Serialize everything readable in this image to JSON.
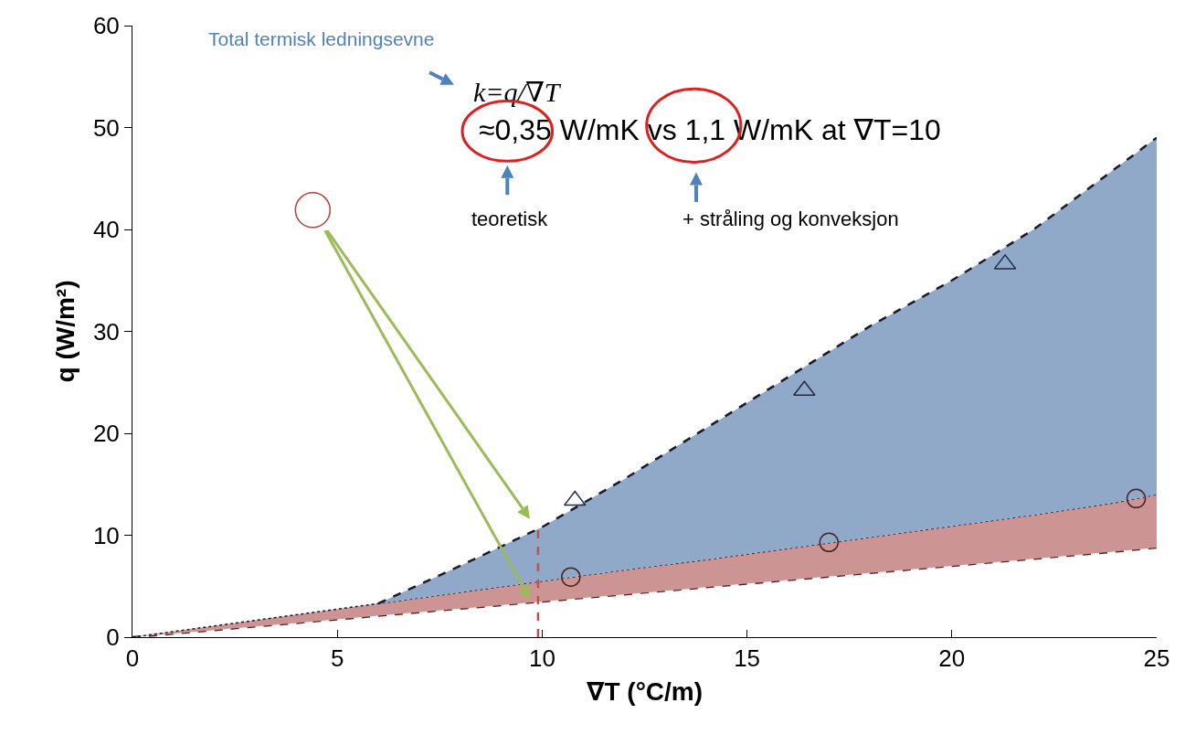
{
  "chart_data": {
    "type": "line",
    "xlabel": "∇T (°C/m)",
    "ylabel": "q (W/m²)",
    "x": [
      0,
      2,
      4,
      6,
      8,
      10,
      12,
      14,
      16,
      18,
      20,
      22,
      24,
      25
    ],
    "series": [
      {
        "color": "#5a1c1c",
        "line_style": "dashed",
        "values": [
          0,
          0.7,
          1.4,
          2.1,
          2.8,
          3.5,
          4.2,
          4.9,
          5.6,
          6.3,
          7.0,
          7.7,
          8.4,
          8.8
        ]
      },
      {
        "type": "area",
        "color": "#cd9494",
        "line_style": "dotted",
        "values": [
          0,
          1.1,
          2.2,
          3.3,
          4.4,
          5.5,
          6.6,
          7.6,
          8.7,
          9.8,
          10.9,
          12.0,
          13.2,
          14.0
        ]
      },
      {
        "type": "area",
        "color": "#90a9c8",
        "line_style": "dashed",
        "x": [
          6,
          8,
          10,
          12,
          14,
          16,
          18,
          20,
          22,
          24,
          25
        ],
        "values": [
          3.3,
          7.0,
          10.8,
          15.5,
          20.5,
          25.5,
          30.5,
          35.0,
          40.0,
          46.0,
          49.0
        ]
      },
      {
        "color": "#c0504d",
        "line_style": "dashed",
        "x": [
          9.9,
          9.9
        ],
        "values": [
          0,
          10.6
        ]
      },
      {
        "type": "scatter",
        "color": "#1f2a44",
        "marker": "triangle",
        "x": [
          10.8,
          16.4,
          21.3
        ],
        "values": [
          13.4,
          24.2,
          36.6
        ]
      },
      {
        "type": "scatter",
        "color": "#4a2020",
        "marker": "circle",
        "x": [
          10.7,
          17,
          24.5
        ],
        "values": [
          5.9,
          9.3,
          13.6
        ]
      },
      {
        "type": "scatter",
        "color": "#b4423f",
        "marker": "circle",
        "x": [
          4.4
        ],
        "values": [
          41.9
        ]
      }
    ],
    "annotations": [
      "Total termisk ledningsevne",
      "k=q/∇T",
      "≈0,35 W/mK vs 1,1 W/mK at ∇T=10",
      "teoretisk",
      "+ stråling og konveksjon"
    ],
    "xlim": [
      0,
      25
    ],
    "xticks": [
      0,
      5,
      10,
      15,
      20,
      25
    ],
    "ylim": [
      0,
      60
    ],
    "yticks": [
      0,
      10,
      20,
      30,
      40,
      50,
      60
    ],
    "grid": false
  }
}
